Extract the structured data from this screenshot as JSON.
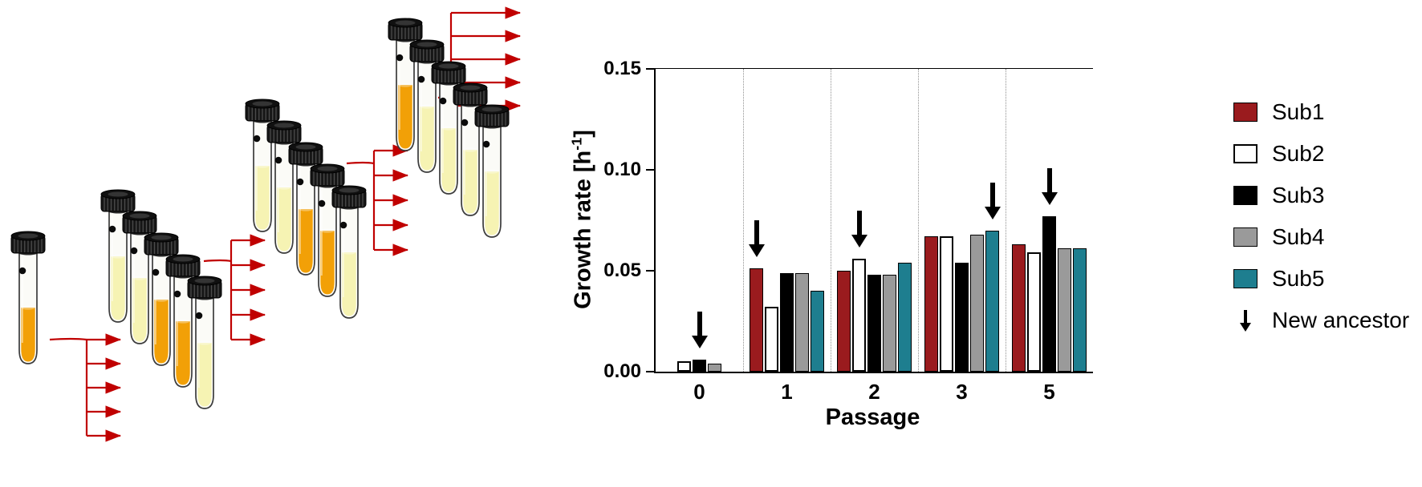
{
  "figure": {
    "panels": [
      "serial-passaging-scheme",
      "growth-rate-bar-chart"
    ],
    "background": "#FFFFFF"
  },
  "illustration": {
    "name": "serial-passaging-scheme",
    "founder_vials": 1,
    "subcultures_per_passage": 5,
    "passage_clusters": 3,
    "outgoing_transfer_arrows": 5,
    "colors": {
      "liquid_orange": "#F2A007",
      "liquid_pale_yellow": "#F6F3B3",
      "transfer_arrow_red": "#C00000",
      "cap_black": "#161616",
      "glass_outline": "#3C3C3C"
    }
  },
  "chart_data": {
    "type": "bar",
    "title": "",
    "xlabel": "Passage",
    "ylabel": "Growth rate [h-1]",
    "ylabel_parts": {
      "main": "Growth rate [h",
      "sup": "-1",
      "close": "]"
    },
    "categories": [
      "0",
      "1",
      "2",
      "3",
      "5"
    ],
    "ylim": [
      0,
      0.15
    ],
    "yticks": [
      0,
      0.05,
      0.1,
      0.15
    ],
    "ytick_labels": [
      "0.00",
      "0.05",
      "0.10",
      "0.15"
    ],
    "grid": "dotted vertical separators between passage groups",
    "legend_position": "right",
    "series": [
      {
        "name": "Sub1",
        "color": "#9A1B1E",
        "values": [
          0,
          0.051,
          0.05,
          0.067,
          0.063
        ]
      },
      {
        "name": "Sub2",
        "color": "#FFFFFF",
        "outline": "#000000",
        "values": [
          0.005,
          0.032,
          0.056,
          0.067,
          0.059
        ]
      },
      {
        "name": "Sub3",
        "color": "#000000",
        "values": [
          0.006,
          0.049,
          0.048,
          0.054,
          0.077
        ]
      },
      {
        "name": "Sub4",
        "color": "#9A9A9A",
        "values": [
          0.004,
          0.049,
          0.048,
          0.068,
          0.061
        ]
      },
      {
        "name": "Sub5",
        "color": "#1E7E8F",
        "values": [
          0,
          0.04,
          0.054,
          0.07,
          0.061
        ]
      }
    ],
    "new_ancestor_label": "New ancestor",
    "new_ancestor_by_passage": {
      "0": "Sub3",
      "1": "Sub1",
      "2": "Sub2",
      "3": "Sub5",
      "5": "Sub3"
    }
  }
}
